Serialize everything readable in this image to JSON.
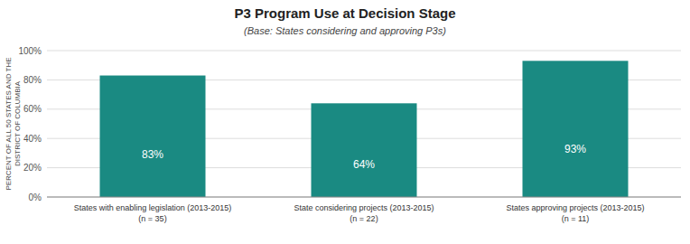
{
  "chart_data": {
    "type": "bar",
    "title": "P3 Program Use at Decision Stage",
    "subtitle": "(Base: States considering and approving P3s)",
    "categories": [
      "States with enabling legislation (2013-2015)\n(n = 35)",
      "State considering projects (2013-2015)\n(n = 22)",
      "States approving projects (2013-2015)\n(n = 11)"
    ],
    "values": [
      83,
      64,
      93
    ],
    "value_labels": [
      "83%",
      "64%",
      "93%"
    ],
    "data_labels": true,
    "color": "#1a8a82",
    "ylabel": "PERCENT OF ALL 50 STATES AND THE\nDISTRICT OF COLUMBIA",
    "ylim": [
      0,
      100
    ],
    "yticks": [
      {
        "value": 0,
        "label": "0%"
      },
      {
        "value": 20,
        "label": "20%"
      },
      {
        "value": 40,
        "label": "40%"
      },
      {
        "value": 60,
        "label": "60%"
      },
      {
        "value": 80,
        "label": "80%"
      },
      {
        "value": 100,
        "label": "100%"
      }
    ],
    "grid": true
  }
}
